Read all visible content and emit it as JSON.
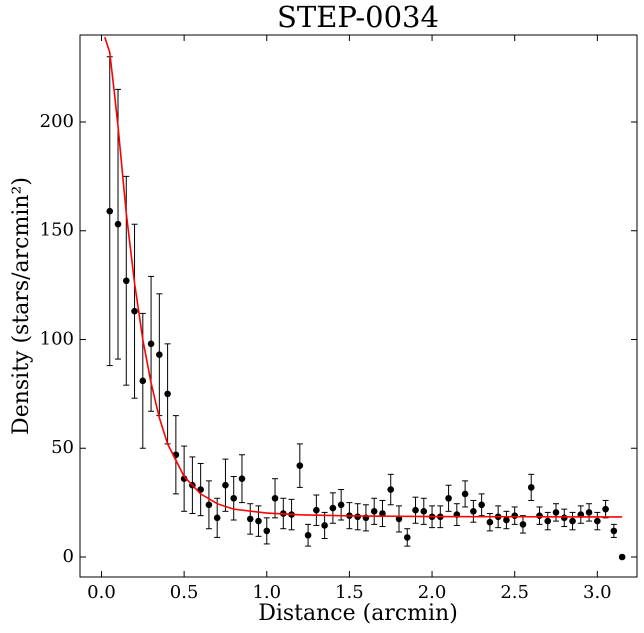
{
  "chart_data": {
    "type": "scatter",
    "title": "STEP-0034",
    "x_label": "Distance (arcmin)",
    "y_label": "Density (stars/arcmin²)",
    "xlim": [
      -0.13,
      3.24
    ],
    "ylim": [
      -9.2,
      240
    ],
    "xticks": [
      {
        "value": 0,
        "label": "0.0"
      },
      0.5,
      {
        "value": 1,
        "label": "1.0"
      },
      1.5,
      {
        "value": 2,
        "label": "2.0"
      },
      2.5,
      {
        "value": 3,
        "label": "3.0"
      }
    ],
    "yticks": [
      0,
      50,
      100,
      150,
      200
    ],
    "series": [
      {
        "type": "scatter",
        "color": "#000000",
        "x": [
          0.05,
          0.1,
          0.15,
          0.2,
          0.25,
          0.3,
          0.35,
          0.4,
          0.45,
          0.5,
          0.55,
          0.6,
          0.65,
          0.7,
          0.75,
          0.8,
          0.85,
          0.9,
          0.95,
          1.0,
          1.05,
          1.1,
          1.15,
          1.2,
          1.25,
          1.3,
          1.35,
          1.4,
          1.45,
          1.5,
          1.55,
          1.6,
          1.65,
          1.7,
          1.75,
          1.8,
          1.85,
          1.9,
          1.95,
          2.0,
          2.05,
          2.1,
          2.15,
          2.2,
          2.25,
          2.3,
          2.35,
          2.4,
          2.45,
          2.5,
          2.55,
          2.6,
          2.65,
          2.7,
          2.75,
          2.8,
          2.85,
          2.9,
          2.95,
          3.0,
          3.05,
          3.1,
          3.15
        ],
        "values": [
          159,
          153,
          127,
          113,
          81,
          98,
          93,
          75,
          47,
          36,
          33,
          31,
          24,
          18,
          33,
          27,
          36,
          17.5,
          16.5,
          12,
          27,
          20,
          19.5,
          42,
          10,
          21.5,
          14.5,
          22.5,
          24,
          19,
          18.5,
          18,
          21,
          20,
          31,
          17.5,
          9,
          21.5,
          21,
          18.5,
          18.5,
          27,
          19.5,
          29,
          21,
          24,
          16,
          18.5,
          17,
          19,
          15,
          32,
          19,
          16.5,
          20.5,
          18,
          16.5,
          19.5,
          20.5,
          16.5,
          22,
          12,
          0
        ],
        "errors": [
          71,
          62,
          48,
          40,
          31,
          31,
          28,
          23,
          18,
          15,
          13,
          12,
          11,
          9,
          12,
          10,
          11,
          7,
          7,
          6,
          9,
          7,
          7,
          10,
          5,
          7,
          6,
          7,
          7,
          6,
          6,
          6,
          6,
          6,
          7,
          6,
          4,
          6,
          6,
          5,
          5,
          6,
          5,
          6,
          5,
          5,
          4,
          5,
          4,
          4,
          4,
          6,
          4,
          4,
          4,
          4,
          4,
          4,
          4,
          4,
          4,
          3,
          0
        ]
      },
      {
        "type": "line",
        "color": "#ff0000",
        "x": [
          0.02,
          0.05,
          0.08,
          0.1,
          0.12,
          0.15,
          0.2,
          0.25,
          0.3,
          0.35,
          0.4,
          0.5,
          0.6,
          0.7,
          0.8,
          1.0,
          1.2,
          1.5,
          2.0,
          2.5,
          3.0,
          3.15
        ],
        "values": [
          239,
          232,
          212,
          198,
          182,
          158,
          126,
          100,
          80,
          64,
          52,
          37,
          29,
          24.5,
          22,
          20.2,
          19.4,
          18.9,
          18.6,
          18.5,
          18.4,
          18.4
        ]
      }
    ]
  }
}
